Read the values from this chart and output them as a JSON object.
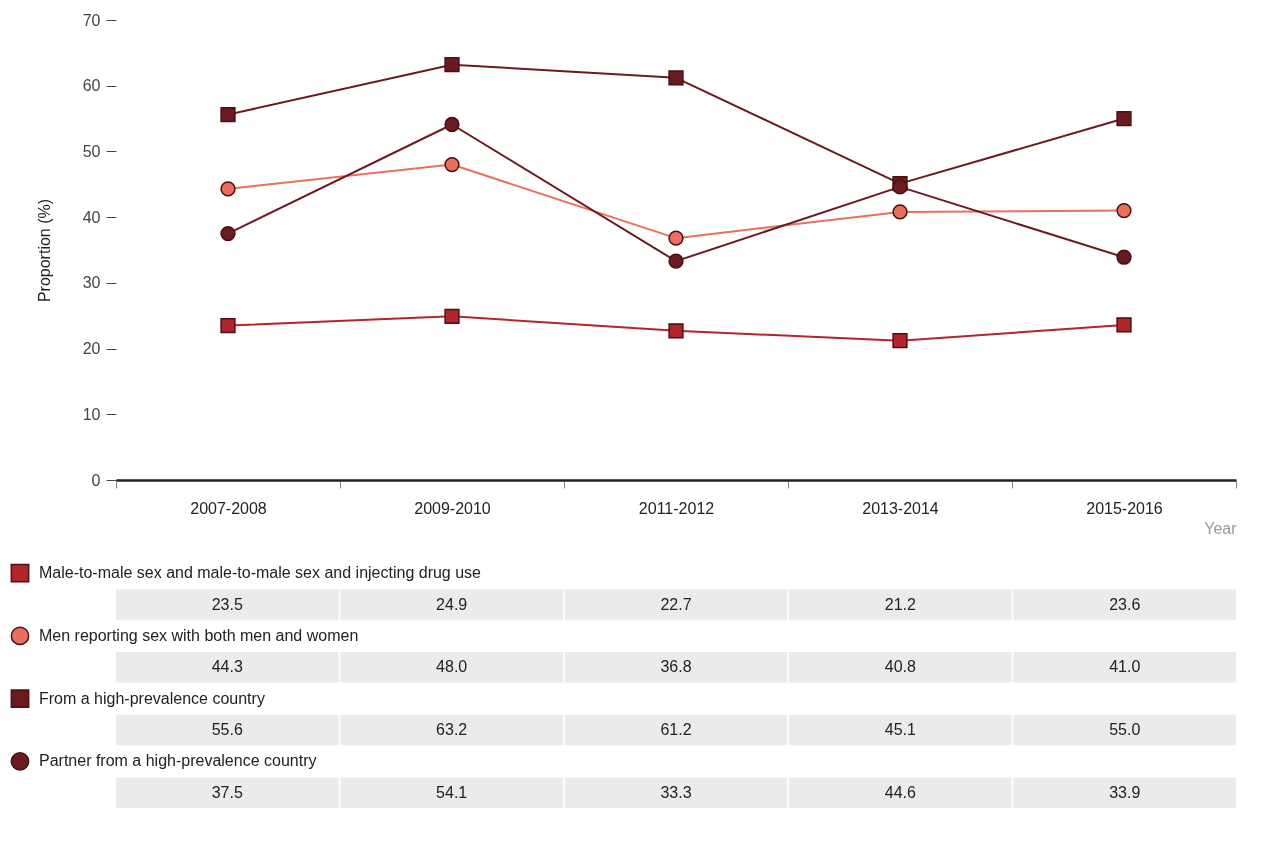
{
  "chart_data": {
    "type": "line",
    "ylabel": "Proportion (%)",
    "xlabel": "Year",
    "categories": [
      "2007-2008",
      "2009-2010",
      "2011-2012",
      "2013-2014",
      "2015-2016"
    ],
    "series": [
      {
        "name": "Male-to-male sex and male-to-male sex and injecting drug use",
        "color": "#b0262a",
        "marker": "square",
        "values": [
          23.5,
          24.9,
          22.7,
          21.2,
          23.6
        ],
        "value_labels": [
          "23.5",
          "24.9",
          "22.7",
          "21.2",
          "23.6"
        ]
      },
      {
        "name": "Men reporting sex with both men and women",
        "color": "#e8705f",
        "marker": "circle",
        "values": [
          44.3,
          48.0,
          36.8,
          40.8,
          41.0
        ],
        "value_labels": [
          "44.3",
          "48.0",
          "36.8",
          "40.8",
          "41.0"
        ]
      },
      {
        "name": "From a high-prevalence country",
        "color": "#6b1a1f",
        "marker": "square",
        "values": [
          55.6,
          63.2,
          61.2,
          45.1,
          55.0
        ],
        "value_labels": [
          "55.6",
          "63.2",
          "61.2",
          "45.1",
          "55.0"
        ]
      },
      {
        "name": "Partner from a high-prevalence country",
        "color": "#6b1a1f",
        "marker": "circle",
        "values": [
          37.5,
          54.1,
          33.3,
          44.6,
          33.9
        ],
        "value_labels": [
          "37.5",
          "54.1",
          "33.3",
          "44.6",
          "33.9"
        ]
      }
    ],
    "ylim": [
      0,
      70
    ],
    "yticks": [
      0,
      10,
      20,
      30,
      40,
      50,
      60,
      70
    ],
    "grid": false,
    "legend": "bottom"
  }
}
